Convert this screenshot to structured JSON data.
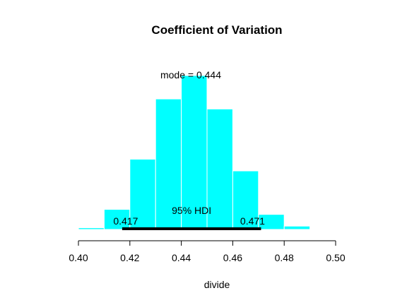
{
  "chart_data": {
    "type": "bar",
    "title": "Coefficient of Variation",
    "xlabel": "divide",
    "ylabel": "",
    "xlim": [
      0.4,
      0.5
    ],
    "ylim": [
      0,
      1
    ],
    "x_ticks": [
      "0.40",
      "0.42",
      "0.44",
      "0.46",
      "0.48",
      "0.50"
    ],
    "bin_width": 0.01,
    "bin_starts": [
      0.4,
      0.41,
      0.42,
      0.43,
      0.44,
      0.45,
      0.46,
      0.47,
      0.48
    ],
    "values": [
      0.01,
      0.12,
      0.42,
      0.78,
      0.92,
      0.72,
      0.35,
      0.09,
      0.02
    ],
    "mode_label": "mode = 0.444",
    "hdi": {
      "label": "95% HDI",
      "low": 0.417,
      "high": 0.471,
      "low_label": "0.417",
      "high_label": "0.471"
    },
    "grid": false,
    "colors": {
      "bar_fill": "#00ffff",
      "bar_edge": "#ffffff",
      "hdi_line": "#000000",
      "axis": "#000000"
    }
  }
}
